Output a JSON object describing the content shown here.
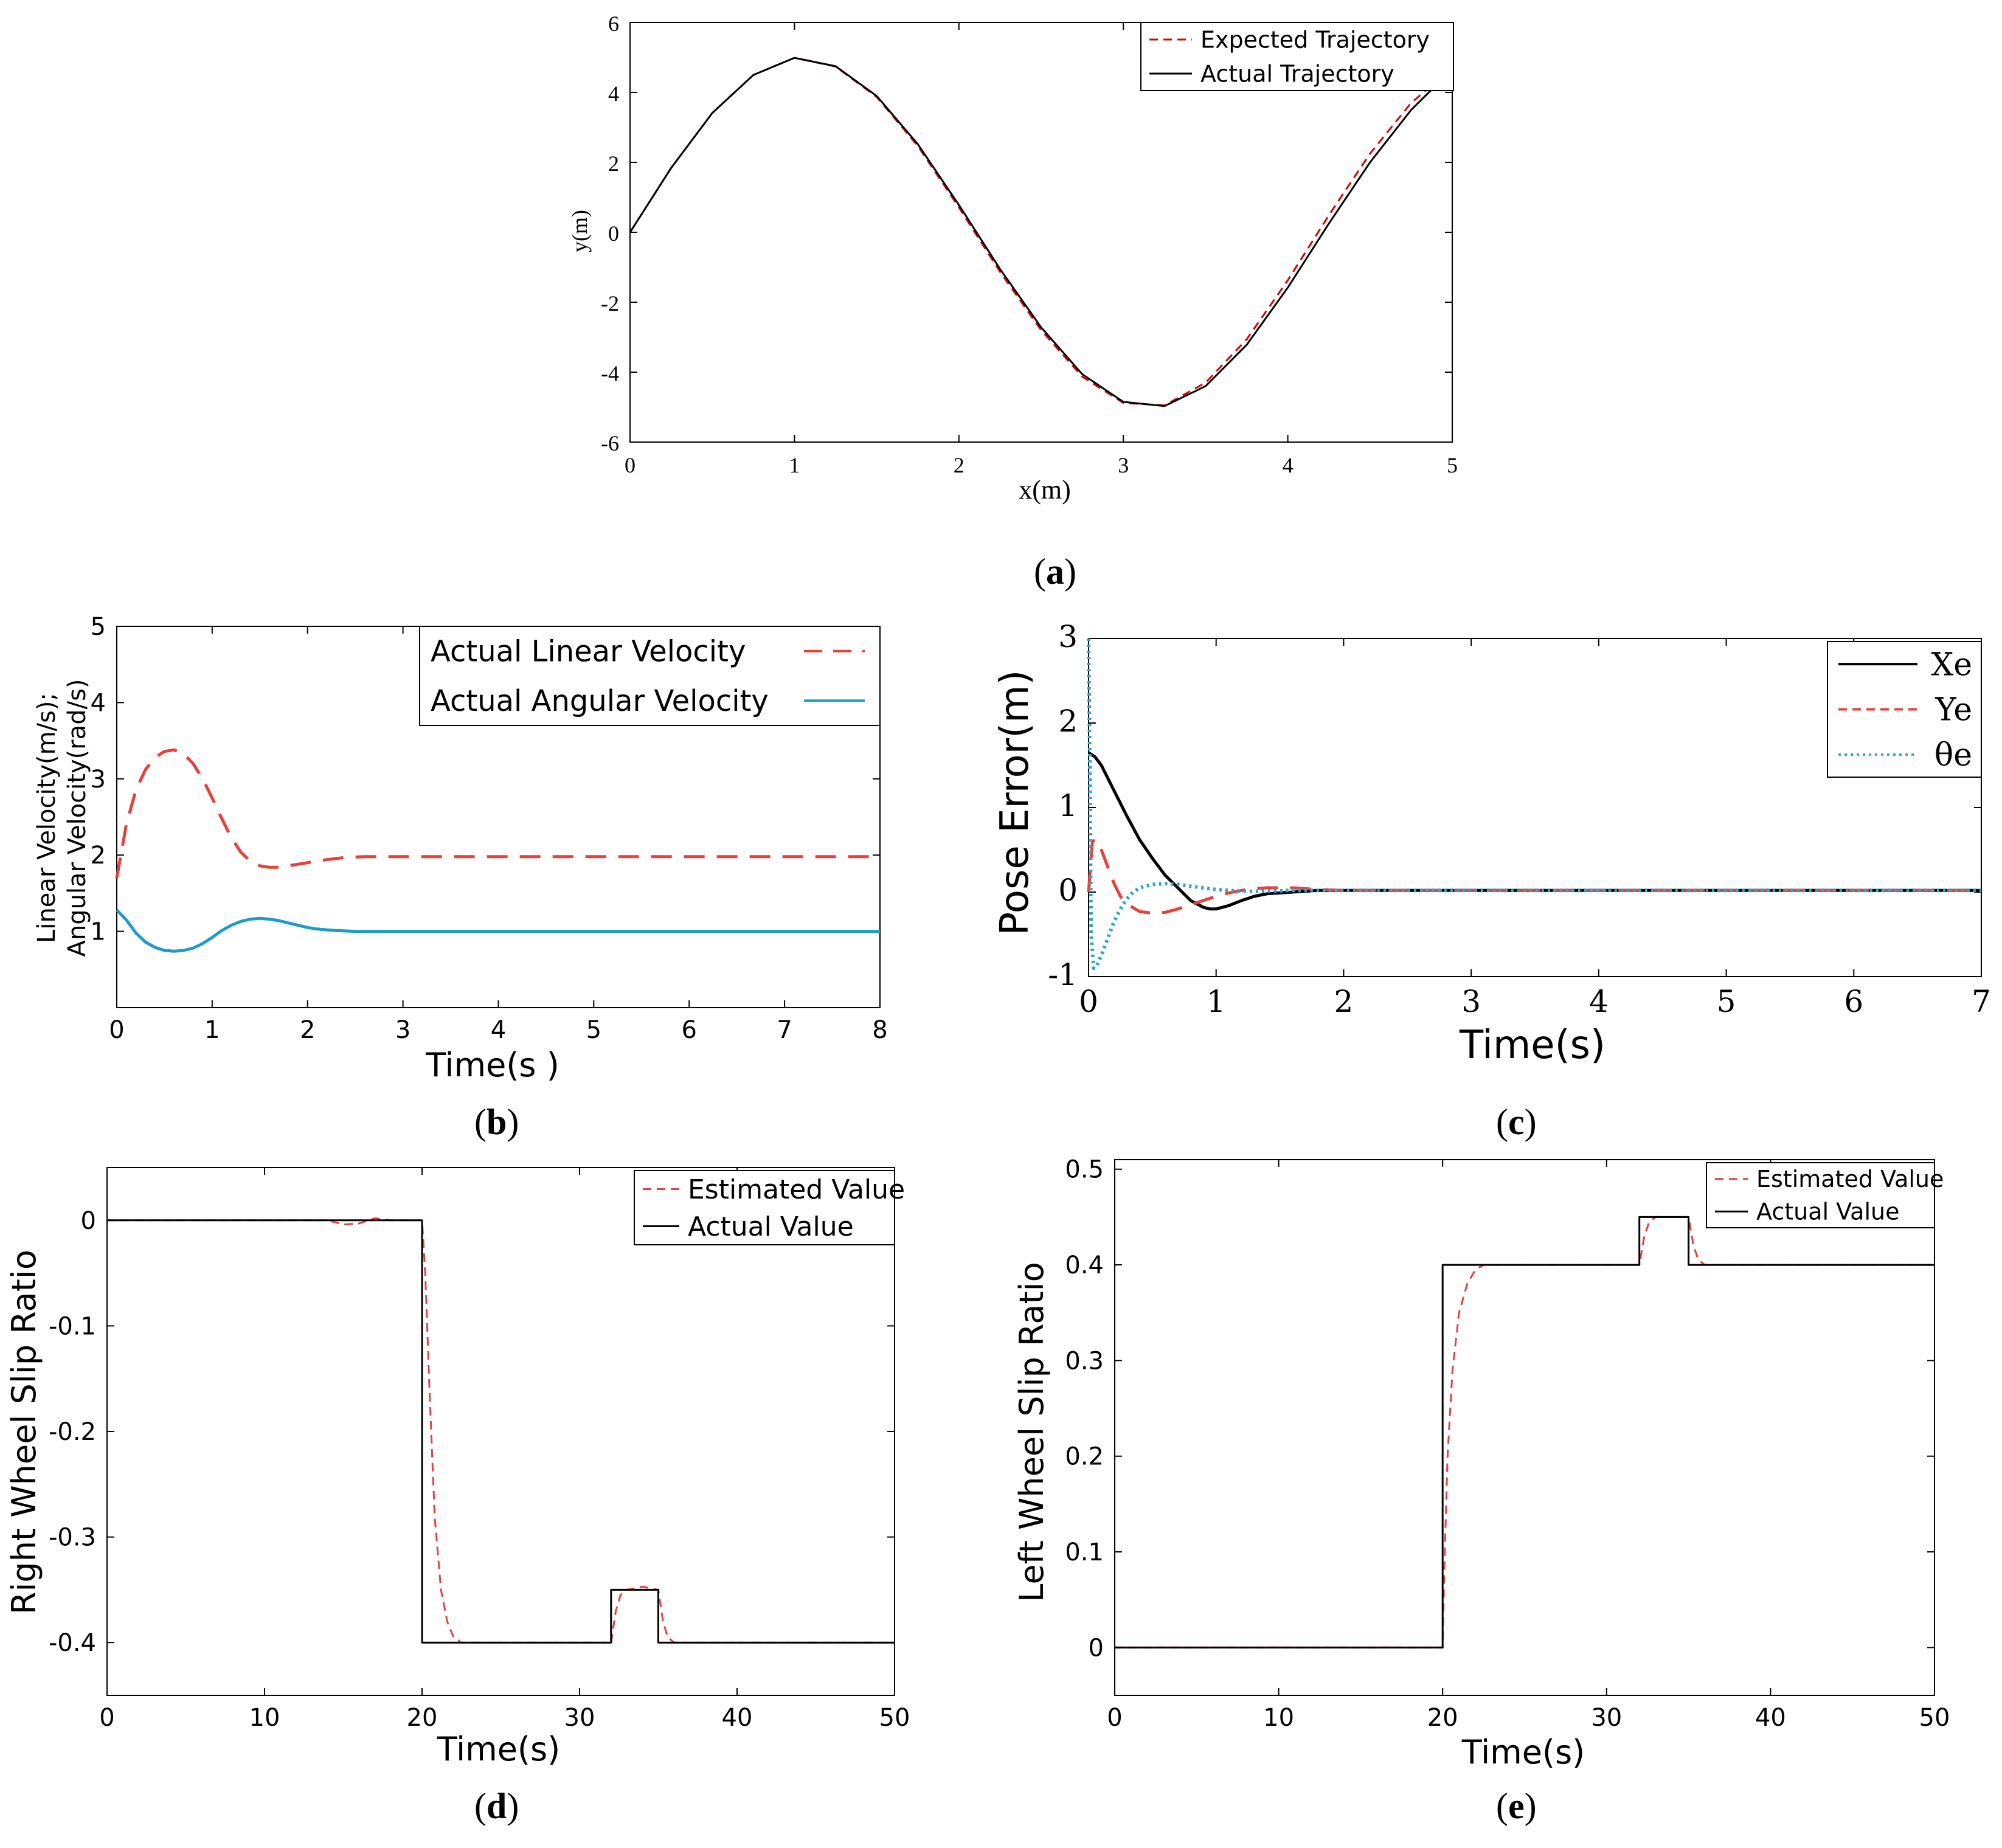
{
  "chart_data": [
    {
      "id": "a",
      "type": "line",
      "caption": "(a)",
      "xlabel": "x(m)",
      "ylabel": "y(m)",
      "xlim": [
        0,
        5
      ],
      "ylim": [
        -6,
        6
      ],
      "xticks": [
        0,
        1,
        2,
        3,
        4,
        5
      ],
      "yticks": [
        -6,
        -4,
        -2,
        0,
        2,
        4,
        6
      ],
      "series": [
        {
          "name": "Expected Trajectory",
          "style": "dashed",
          "color": "#e00000",
          "x": [
            0,
            0.25,
            0.5,
            0.75,
            1.0,
            1.25,
            1.5,
            1.75,
            2.0,
            2.25,
            2.5,
            2.75,
            3.0,
            3.25,
            3.5,
            3.75,
            4.0,
            4.25,
            4.5,
            4.75,
            4.9
          ],
          "y": [
            0,
            1.84,
            3.41,
            4.5,
            4.99,
            4.74,
            3.87,
            2.47,
            0.71,
            -1.13,
            -2.8,
            -4.13,
            -4.88,
            -4.95,
            -4.3,
            -3.06,
            -1.37,
            0.49,
            2.25,
            3.7,
            4.3
          ]
        },
        {
          "name": "Actual Trajectory",
          "style": "solid",
          "color": "#000000",
          "x": [
            0,
            0.25,
            0.5,
            0.75,
            1.0,
            1.25,
            1.5,
            1.75,
            2.0,
            2.25,
            2.5,
            2.75,
            3.0,
            3.25,
            3.5,
            3.75,
            4.0,
            4.25,
            4.5,
            4.75,
            4.9
          ],
          "y": [
            0,
            1.84,
            3.41,
            4.5,
            4.99,
            4.75,
            3.9,
            2.52,
            0.78,
            -1.05,
            -2.72,
            -4.06,
            -4.85,
            -4.97,
            -4.4,
            -3.22,
            -1.58,
            0.25,
            2.0,
            3.5,
            4.2
          ]
        }
      ]
    },
    {
      "id": "b",
      "type": "line",
      "caption": "(b)",
      "xlabel": "Time(s )",
      "ylabel": [
        "Linear Velocity(m/s);",
        "Angular Velocity(rad/s)"
      ],
      "xlim": [
        0,
        8
      ],
      "ylim": [
        0,
        5
      ],
      "xticks": [
        0,
        1,
        2,
        3,
        4,
        5,
        6,
        7,
        8
      ],
      "yticks": [
        1,
        2,
        3,
        4,
        5
      ],
      "series": [
        {
          "name": "Actual Linear Velocity",
          "style": "dashed",
          "color": "#e8403a",
          "x": [
            0,
            0.1,
            0.2,
            0.3,
            0.4,
            0.5,
            0.6,
            0.7,
            0.8,
            0.9,
            1.0,
            1.1,
            1.2,
            1.3,
            1.4,
            1.5,
            1.6,
            1.7,
            1.8,
            1.9,
            2.0,
            2.2,
            2.4,
            2.6,
            3.0,
            4.0,
            5.0,
            6.0,
            7.0,
            8.0
          ],
          "y": [
            1.7,
            2.4,
            2.85,
            3.12,
            3.28,
            3.36,
            3.38,
            3.33,
            3.2,
            3.0,
            2.75,
            2.48,
            2.23,
            2.04,
            1.92,
            1.86,
            1.84,
            1.84,
            1.86,
            1.88,
            1.9,
            1.94,
            1.97,
            1.98,
            1.98,
            1.98,
            1.98,
            1.98,
            1.98,
            1.98
          ]
        },
        {
          "name": "Actual Angular Velocity",
          "style": "solid",
          "color": "#1f9bcb",
          "x": [
            0,
            0.1,
            0.2,
            0.3,
            0.4,
            0.5,
            0.6,
            0.7,
            0.8,
            0.9,
            1.0,
            1.1,
            1.2,
            1.3,
            1.4,
            1.5,
            1.6,
            1.7,
            1.8,
            1.9,
            2.0,
            2.1,
            2.2,
            2.3,
            2.5,
            2.7,
            3.0,
            4.0,
            5.0,
            6.0,
            7.0,
            8.0
          ],
          "y": [
            1.28,
            1.15,
            0.98,
            0.86,
            0.79,
            0.75,
            0.74,
            0.75,
            0.78,
            0.84,
            0.92,
            1.01,
            1.08,
            1.13,
            1.16,
            1.17,
            1.16,
            1.14,
            1.11,
            1.08,
            1.05,
            1.03,
            1.02,
            1.01,
            1.0,
            1.0,
            1.0,
            1.0,
            1.0,
            1.0,
            1.0,
            1.0
          ]
        }
      ]
    },
    {
      "id": "c",
      "type": "line",
      "caption": "(c)",
      "xlabel": "Time(s)",
      "ylabel": "Pose Error(m)",
      "xlim": [
        0,
        7
      ],
      "ylim": [
        -1,
        3
      ],
      "xticks": [
        0,
        1,
        2,
        3,
        4,
        5,
        6,
        7
      ],
      "yticks": [
        -1,
        0,
        1,
        2,
        3
      ],
      "series": [
        {
          "name": "Xe",
          "style": "solid",
          "color": "#000000",
          "x": [
            0,
            0.05,
            0.1,
            0.2,
            0.3,
            0.4,
            0.5,
            0.6,
            0.7,
            0.8,
            0.9,
            0.95,
            1.0,
            1.1,
            1.2,
            1.3,
            1.4,
            1.6,
            1.8,
            2.0,
            3.0,
            4.0,
            5.0,
            6.0,
            7.0
          ],
          "y": [
            1.65,
            1.6,
            1.5,
            1.2,
            0.9,
            0.62,
            0.4,
            0.2,
            0.05,
            -0.1,
            -0.18,
            -0.2,
            -0.2,
            -0.16,
            -0.1,
            -0.05,
            -0.02,
            0.0,
            0.02,
            0.02,
            0.02,
            0.02,
            0.02,
            0.02,
            0.02
          ]
        },
        {
          "name": "Ye",
          "style": "dashed",
          "color": "#e8403a",
          "x": [
            0,
            0.03,
            0.06,
            0.1,
            0.15,
            0.2,
            0.25,
            0.3,
            0.4,
            0.5,
            0.6,
            0.7,
            0.8,
            0.9,
            1.0,
            1.1,
            1.2,
            1.3,
            1.4,
            1.5,
            1.6,
            1.7,
            1.8,
            2.0,
            3.0,
            4.0,
            5.0,
            6.0,
            7.0
          ],
          "y": [
            0.0,
            0.6,
            0.62,
            0.5,
            0.3,
            0.1,
            -0.05,
            -0.14,
            -0.23,
            -0.25,
            -0.24,
            -0.2,
            -0.15,
            -0.1,
            -0.05,
            -0.01,
            0.02,
            0.04,
            0.05,
            0.05,
            0.05,
            0.04,
            0.03,
            0.02,
            0.02,
            0.02,
            0.02,
            0.02,
            0.02
          ]
        },
        {
          "name": "θe",
          "style": "dotted",
          "color": "#2aa7d0",
          "x": [
            0,
            0.01,
            0.02,
            0.04,
            0.06,
            0.1,
            0.15,
            0.2,
            0.25,
            0.3,
            0.35,
            0.4,
            0.5,
            0.6,
            0.7,
            0.8,
            0.9,
            1.0,
            1.1,
            1.2,
            1.4,
            1.6,
            2.0,
            3.0,
            4.0,
            5.0,
            6.0,
            7.0
          ],
          "y": [
            3.0,
            1.5,
            -0.5,
            -0.9,
            -0.88,
            -0.75,
            -0.55,
            -0.35,
            -0.2,
            -0.08,
            0.0,
            0.05,
            0.09,
            0.1,
            0.09,
            0.07,
            0.05,
            0.03,
            0.02,
            0.01,
            0.01,
            0.02,
            0.02,
            0.02,
            0.02,
            0.02,
            0.02,
            0.02
          ]
        }
      ]
    },
    {
      "id": "d",
      "type": "line",
      "caption": "(d)",
      "xlabel": "Time(s)",
      "ylabel": "Right Wheel Slip Ratio",
      "xlim": [
        0,
        50
      ],
      "ylim": [
        -0.45,
        0.05
      ],
      "xticks": [
        0,
        10,
        20,
        30,
        40,
        50
      ],
      "yticks": [
        0,
        -0.1,
        -0.2,
        -0.3,
        -0.4
      ],
      "ytick_labels": [
        "0",
        "-0.1",
        "-0.2",
        "-0.3",
        "-0.4"
      ],
      "series": [
        {
          "name": "Estimated Value",
          "style": "dashed",
          "color": "#e8403a",
          "x": [
            0,
            5,
            10,
            14,
            15,
            16,
            17,
            18,
            20,
            20.2,
            20.5,
            20.8,
            21.2,
            21.6,
            22,
            22.5,
            23,
            25,
            28,
            32,
            32.3,
            32.6,
            33,
            34,
            35,
            35.3,
            35.6,
            36,
            40,
            45,
            50
          ],
          "y": [
            0,
            0,
            0,
            0,
            -0.004,
            -0.003,
            0.002,
            0,
            0,
            -0.05,
            -0.17,
            -0.28,
            -0.35,
            -0.38,
            -0.395,
            -0.4,
            -0.4,
            -0.4,
            -0.4,
            -0.4,
            -0.37,
            -0.355,
            -0.35,
            -0.347,
            -0.35,
            -0.38,
            -0.395,
            -0.4,
            -0.4,
            -0.4,
            -0.4
          ]
        },
        {
          "name": "Actual Value",
          "style": "solid",
          "color": "#000000",
          "x": [
            0,
            20,
            20,
            32,
            32,
            35,
            35,
            50
          ],
          "y": [
            0,
            0,
            -0.4,
            -0.4,
            -0.35,
            -0.35,
            -0.4,
            -0.4
          ]
        }
      ]
    },
    {
      "id": "e",
      "type": "line",
      "caption": "(e)",
      "xlabel": "Time(s)",
      "ylabel": "Left Wheel Slip Ratio",
      "xlim": [
        0,
        50
      ],
      "ylim": [
        -0.05,
        0.51
      ],
      "xticks": [
        0,
        10,
        20,
        30,
        40,
        50
      ],
      "yticks": [
        0,
        0.1,
        0.2,
        0.3,
        0.4,
        0.5
      ],
      "ytick_labels": [
        "0",
        "0.1",
        "0.2",
        "0.3",
        "0.4",
        "0.5"
      ],
      "series": [
        {
          "name": "Estimated Value",
          "style": "dashed",
          "color": "#e8403a",
          "x": [
            0,
            10,
            20,
            20.1,
            20.3,
            20.6,
            21,
            21.5,
            22,
            22.5,
            23,
            25,
            28,
            32,
            32.3,
            32.6,
            33,
            34,
            35,
            35.3,
            35.6,
            36,
            40,
            45,
            50
          ],
          "y": [
            0,
            0,
            0,
            0.08,
            0.2,
            0.29,
            0.35,
            0.38,
            0.395,
            0.4,
            0.4,
            0.4,
            0.4,
            0.4,
            0.43,
            0.445,
            0.45,
            0.45,
            0.45,
            0.42,
            0.405,
            0.4,
            0.4,
            0.4,
            0.4
          ]
        },
        {
          "name": "Actual Value",
          "style": "solid",
          "color": "#000000",
          "x": [
            0,
            20,
            20,
            32,
            32,
            35,
            35,
            50
          ],
          "y": [
            0,
            0,
            0.4,
            0.4,
            0.45,
            0.45,
            0.4,
            0.4
          ]
        }
      ]
    }
  ]
}
